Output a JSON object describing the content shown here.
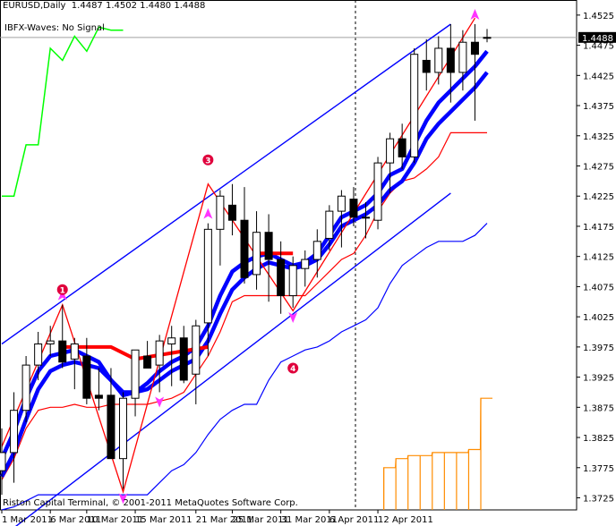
{
  "header": {
    "symbol": "EURUSD,Daily",
    "open": "1.4487",
    "high": "1.4502",
    "low": "1.4480",
    "close": "1.4488"
  },
  "indicator_label": "IBFX-Waves: No Signal",
  "copyright": "Riston Capital Terminal, © 2001-2011 MetaQuotes Software Corp.",
  "current_price_label": "1.4488",
  "wave_labels": [
    "1",
    "3",
    "4"
  ],
  "colors": {
    "bull": "#ffffff",
    "bear": "#000000",
    "zigzag": "#ff0000",
    "channel": "#0000ff",
    "fast_ma": "#0000ff",
    "wave_line": "#ff0000",
    "green_line": "#00ff00",
    "histogram": "#ff8c00",
    "arrow": "#ff33ff",
    "label_circle": "#e0003c"
  },
  "chart_data": {
    "type": "candlestick",
    "y_ticks": [
      "1.4525",
      "1.4475",
      "1.4425",
      "1.4375",
      "1.4325",
      "1.4275",
      "1.4225",
      "1.4175",
      "1.4125",
      "1.4075",
      "1.4025",
      "1.3975",
      "1.3925",
      "1.3875",
      "1.3825",
      "1.3775",
      "1.3725"
    ],
    "x_ticks": [
      "1 Mar 2011",
      "6 Mar 2011",
      "10 Mar 2011",
      "15 Mar 2011",
      "21 Mar 2011",
      "25 Mar 2011",
      "31 Mar 2011",
      "6 Apr 2011",
      "12 Apr 2011"
    ],
    "ylim": [
      1.3705,
      1.455
    ],
    "candles": [
      {
        "o": 1.377,
        "h": 1.384,
        "l": 1.373,
        "c": 1.38
      },
      {
        "o": 1.38,
        "h": 1.39,
        "l": 1.375,
        "c": 1.387
      },
      {
        "o": 1.387,
        "h": 1.396,
        "l": 1.385,
        "c": 1.3945
      },
      {
        "o": 1.3945,
        "h": 1.4,
        "l": 1.392,
        "c": 1.398
      },
      {
        "o": 1.398,
        "h": 1.401,
        "l": 1.396,
        "c": 1.3985
      },
      {
        "o": 1.3985,
        "h": 1.4045,
        "l": 1.394,
        "c": 1.395
      },
      {
        "o": 1.3955,
        "h": 1.399,
        "l": 1.3905,
        "c": 1.398
      },
      {
        "o": 1.396,
        "h": 1.399,
        "l": 1.388,
        "c": 1.389
      },
      {
        "o": 1.3895,
        "h": 1.394,
        "l": 1.387,
        "c": 1.389
      },
      {
        "o": 1.3895,
        "h": 1.394,
        "l": 1.379,
        "c": 1.379
      },
      {
        "o": 1.379,
        "h": 1.39,
        "l": 1.374,
        "c": 1.389
      },
      {
        "o": 1.389,
        "h": 1.397,
        "l": 1.386,
        "c": 1.397
      },
      {
        "o": 1.396,
        "h": 1.3985,
        "l": 1.394,
        "c": 1.394
      },
      {
        "o": 1.3945,
        "h": 1.3995,
        "l": 1.39,
        "c": 1.3985
      },
      {
        "o": 1.398,
        "h": 1.401,
        "l": 1.391,
        "c": 1.399
      },
      {
        "o": 1.399,
        "h": 1.401,
        "l": 1.3915,
        "c": 1.392
      },
      {
        "o": 1.393,
        "h": 1.402,
        "l": 1.388,
        "c": 1.401
      },
      {
        "o": 1.4015,
        "h": 1.418,
        "l": 1.396,
        "c": 1.417
      },
      {
        "o": 1.417,
        "h": 1.4235,
        "l": 1.411,
        "c": 1.4225
      },
      {
        "o": 1.421,
        "h": 1.4245,
        "l": 1.416,
        "c": 1.4185
      },
      {
        "o": 1.4185,
        "h": 1.424,
        "l": 1.408,
        "c": 1.409
      },
      {
        "o": 1.4095,
        "h": 1.42,
        "l": 1.407,
        "c": 1.4165
      },
      {
        "o": 1.4165,
        "h": 1.4195,
        "l": 1.405,
        "c": 1.412
      },
      {
        "o": 1.412,
        "h": 1.415,
        "l": 1.403,
        "c": 1.406
      },
      {
        "o": 1.406,
        "h": 1.4125,
        "l": 1.404,
        "c": 1.411
      },
      {
        "o": 1.4105,
        "h": 1.4135,
        "l": 1.4075,
        "c": 1.412
      },
      {
        "o": 1.412,
        "h": 1.417,
        "l": 1.409,
        "c": 1.415
      },
      {
        "o": 1.4155,
        "h": 1.421,
        "l": 1.4135,
        "c": 1.42
      },
      {
        "o": 1.42,
        "h": 1.4235,
        "l": 1.414,
        "c": 1.4225
      },
      {
        "o": 1.422,
        "h": 1.424,
        "l": 1.4175,
        "c": 1.419
      },
      {
        "o": 1.419,
        "h": 1.4215,
        "l": 1.4155,
        "c": 1.419
      },
      {
        "o": 1.4185,
        "h": 1.429,
        "l": 1.417,
        "c": 1.428
      },
      {
        "o": 1.428,
        "h": 1.433,
        "l": 1.423,
        "c": 1.432
      },
      {
        "o": 1.432,
        "h": 1.4345,
        "l": 1.427,
        "c": 1.429
      },
      {
        "o": 1.429,
        "h": 1.447,
        "l": 1.428,
        "c": 1.446
      },
      {
        "o": 1.445,
        "h": 1.4485,
        "l": 1.44,
        "c": 1.443
      },
      {
        "o": 1.443,
        "h": 1.449,
        "l": 1.441,
        "c": 1.447
      },
      {
        "o": 1.447,
        "h": 1.451,
        "l": 1.438,
        "c": 1.443
      },
      {
        "o": 1.443,
        "h": 1.45,
        "l": 1.44,
        "c": 1.448
      },
      {
        "o": 1.448,
        "h": 1.451,
        "l": 1.435,
        "c": 1.446
      },
      {
        "o": 1.4487,
        "h": 1.4502,
        "l": 1.448,
        "c": 1.4488
      }
    ],
    "zigzag": [
      [
        0,
        1.381
      ],
      [
        5,
        1.4045
      ],
      [
        10,
        1.3735
      ],
      [
        17,
        1.4245
      ],
      [
        24,
        1.4035
      ],
      [
        39,
        1.452
      ]
    ],
    "fast_ma": [
      1.379,
      1.3835,
      1.389,
      1.3935,
      1.396,
      1.3965,
      1.397,
      1.396,
      1.395,
      1.392,
      1.3895,
      1.39,
      1.3915,
      1.3935,
      1.395,
      1.396,
      1.3975,
      1.401,
      1.406,
      1.41,
      1.4115,
      1.4125,
      1.413,
      1.412,
      1.411,
      1.4115,
      1.413,
      1.416,
      1.419,
      1.42,
      1.421,
      1.423,
      1.426,
      1.427,
      1.431,
      1.435,
      1.438,
      1.44,
      1.442,
      1.444,
      1.4465
    ],
    "slow_ma": [
      1.376,
      1.38,
      1.3855,
      1.3905,
      1.3935,
      1.3945,
      1.395,
      1.3945,
      1.394,
      1.392,
      1.39,
      1.39,
      1.3905,
      1.392,
      1.3935,
      1.3945,
      1.3955,
      1.3985,
      1.403,
      1.407,
      1.409,
      1.4105,
      1.4115,
      1.411,
      1.4105,
      1.411,
      1.412,
      1.4145,
      1.4175,
      1.4185,
      1.4195,
      1.421,
      1.4235,
      1.425,
      1.428,
      1.432,
      1.4345,
      1.4365,
      1.4385,
      1.4405,
      1.443
    ],
    "red_wave_segments": [
      [
        [
          5,
          1.3975
        ],
        [
          9,
          1.3975
        ],
        [
          11,
          1.3955
        ],
        [
          14,
          1.3965
        ],
        [
          17,
          1.3975
        ]
      ],
      [
        [
          21,
          1.413
        ],
        [
          24,
          1.413
        ]
      ]
    ],
    "red_lower": [
      1.3755,
      1.379,
      1.384,
      1.387,
      1.3875,
      1.3875,
      1.388,
      1.3875,
      1.3875,
      1.388,
      1.388,
      1.388,
      1.388,
      1.3885,
      1.389,
      1.39,
      1.393,
      1.396,
      1.4,
      1.405,
      1.406,
      1.406,
      1.406,
      1.406,
      1.406,
      1.406,
      1.408,
      1.41,
      1.412,
      1.413,
      1.416,
      1.42,
      1.423,
      1.425,
      1.4255,
      1.427,
      1.429,
      1.433,
      1.433,
      1.433,
      1.433
    ],
    "blue_lower": [
      1.3705,
      1.371,
      1.372,
      1.373,
      1.373,
      1.373,
      1.373,
      1.373,
      1.373,
      1.373,
      1.373,
      1.373,
      1.373,
      1.375,
      1.377,
      1.378,
      1.38,
      1.383,
      1.3855,
      1.387,
      1.388,
      1.388,
      1.392,
      1.395,
      1.396,
      1.397,
      1.3975,
      1.3985,
      1.4,
      1.401,
      1.402,
      1.404,
      1.408,
      1.411,
      1.4125,
      1.414,
      1.415,
      1.415,
      1.415,
      1.416,
      1.418
    ],
    "channel_upper": [
      [
        0,
        1.398
      ],
      [
        37,
        1.451
      ]
    ],
    "channel_lower": [
      [
        0,
        1.366
      ],
      [
        37,
        1.423
      ]
    ],
    "green_line": [
      [
        0,
        1.4225
      ],
      [
        1,
        1.4225
      ],
      [
        2,
        1.431
      ],
      [
        3,
        1.431
      ],
      [
        4,
        1.447
      ],
      [
        5,
        1.445
      ],
      [
        6,
        1.449
      ],
      [
        7,
        1.4465
      ],
      [
        8,
        1.4505
      ],
      [
        9,
        1.45
      ],
      [
        10,
        1.45
      ]
    ],
    "histogram": [
      0,
      0,
      0,
      0,
      0,
      0,
      0,
      0,
      0,
      0,
      0,
      0,
      0,
      0,
      0,
      0,
      0,
      0,
      0,
      0,
      0,
      0,
      0,
      0,
      0,
      0,
      0,
      0,
      0,
      0,
      0,
      0,
      1.3775,
      1.379,
      1.3795,
      1.3795,
      1.38,
      1.38,
      1.38,
      1.3805,
      1.389
    ],
    "arrows_up": [
      5,
      17,
      39
    ],
    "arrows_down": [
      10,
      13,
      24
    ],
    "labels": [
      [
        5,
        1.407
      ],
      [
        17,
        1.4285
      ],
      [
        24,
        1.394
      ]
    ],
    "current_price": 1.4488
  }
}
